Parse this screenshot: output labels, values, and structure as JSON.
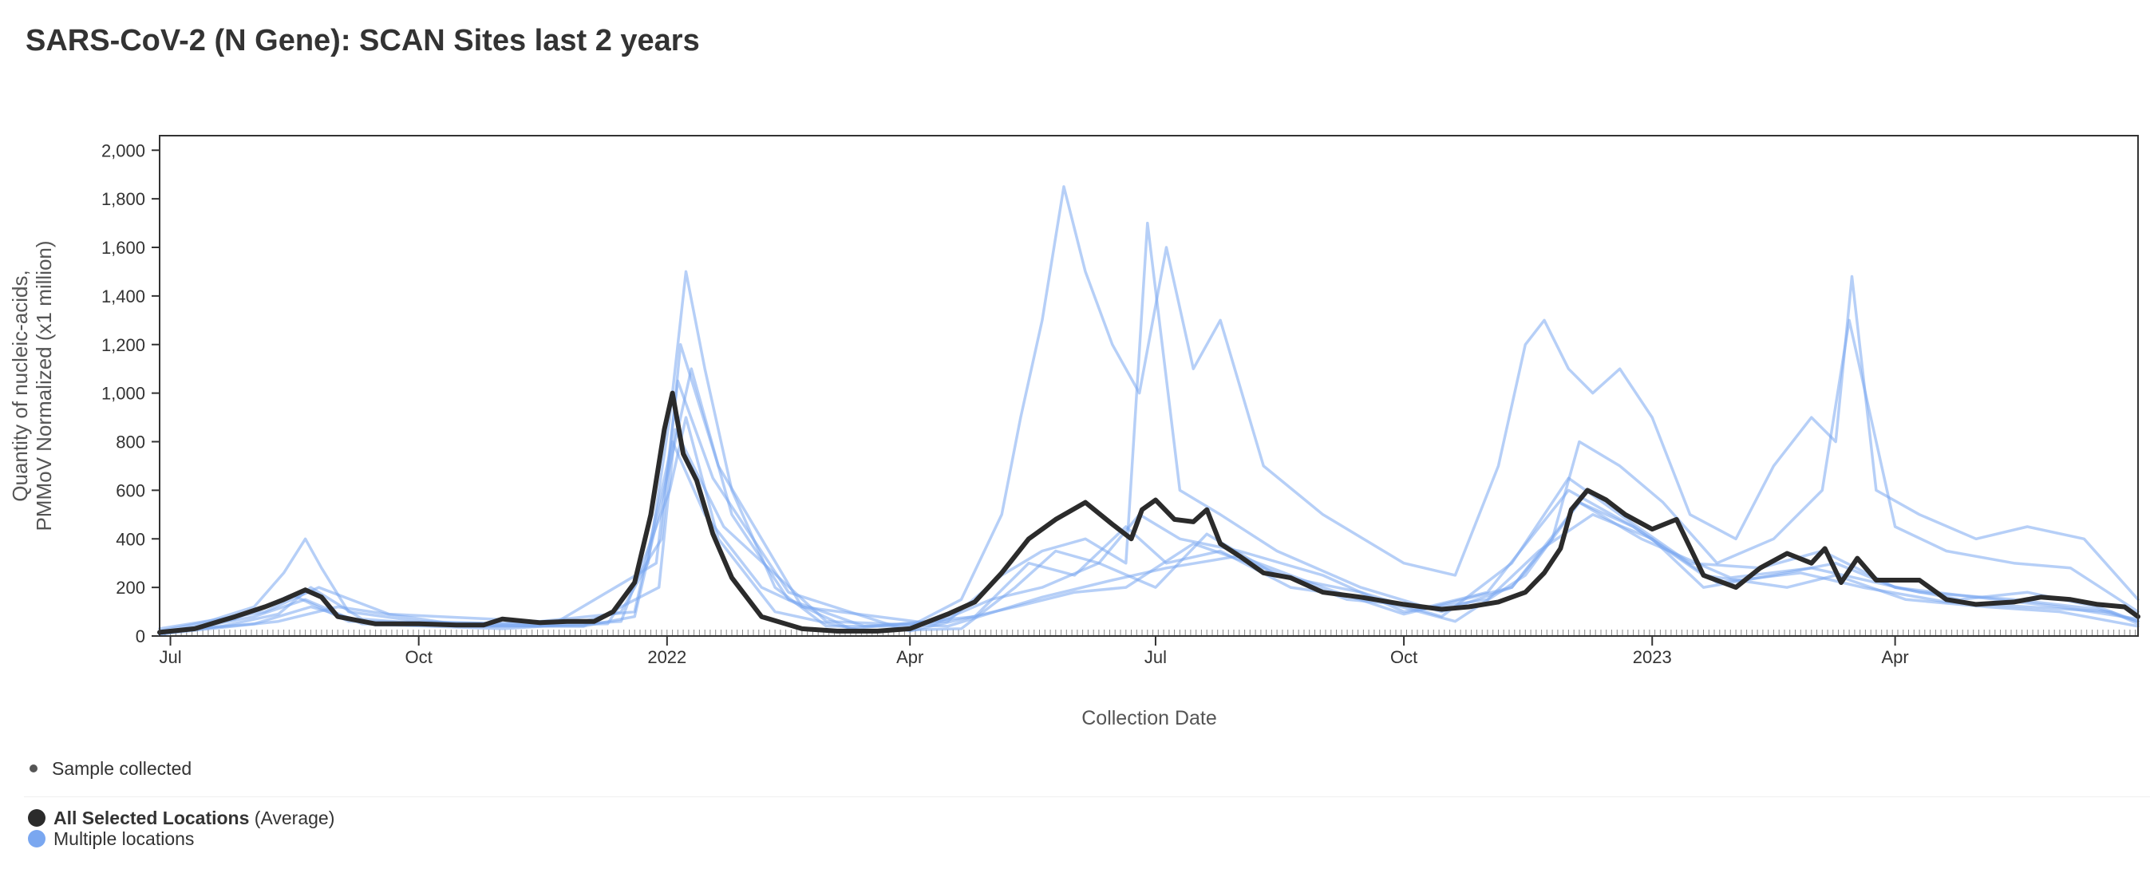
{
  "title": "SARS-CoV-2 (N Gene): SCAN Sites last 2 years",
  "legend": {
    "sample_label": "Sample collected",
    "average_label": "All Selected Locations",
    "average_suffix": "(Average)",
    "multi_label": "Multiple locations"
  },
  "colors": {
    "average": "#2b2b2b",
    "locations": "#7aa7f0",
    "sample_dot": "#555555"
  },
  "chart_data": {
    "type": "line",
    "title": "SARS-CoV-2 (N Gene): SCAN Sites last 2 years",
    "xlabel": "Collection Date",
    "ylabel": "Quantity of nucleic-acids, PMMoV Normalized (x1 million)",
    "ylabel_lines": [
      "Quantity of nucleic-acids,",
      "PMMoV Normalized (x1 million)"
    ],
    "x_range": [
      "2021-06-27",
      "2023-06-30"
    ],
    "ylim": [
      0,
      2060
    ],
    "y_ticks": [
      0,
      200,
      400,
      600,
      800,
      1000,
      1200,
      1400,
      1600,
      1800,
      2000
    ],
    "y_tick_labels": [
      "0",
      "200",
      "400",
      "600",
      "800",
      "1,000",
      "1,200",
      "1,400",
      "1,600",
      "1,800",
      "2,000"
    ],
    "x_ticks": [
      {
        "date": "2021-07-01",
        "label": "Jul"
      },
      {
        "date": "2021-10-01",
        "label": "Oct"
      },
      {
        "date": "2022-01-01",
        "label": "2022"
      },
      {
        "date": "2022-04-01",
        "label": "Apr"
      },
      {
        "date": "2022-07-01",
        "label": "Jul"
      },
      {
        "date": "2022-10-01",
        "label": "Oct"
      },
      {
        "date": "2023-01-01",
        "label": "2023"
      },
      {
        "date": "2023-04-01",
        "label": "Apr"
      }
    ],
    "grid": false,
    "legend_position": "bottom-left",
    "series": [
      {
        "name": "All Selected Locations (Average)",
        "x": [
          "2021-06-27",
          "2021-07-10",
          "2021-07-25",
          "2021-08-05",
          "2021-08-12",
          "2021-08-20",
          "2021-08-26",
          "2021-09-01",
          "2021-09-15",
          "2021-10-01",
          "2021-10-15",
          "2021-10-25",
          "2021-11-01",
          "2021-11-15",
          "2021-11-25",
          "2021-12-05",
          "2021-12-12",
          "2021-12-20",
          "2021-12-26",
          "2021-12-31",
          "2022-01-03",
          "2022-01-07",
          "2022-01-12",
          "2022-01-18",
          "2022-01-25",
          "2022-02-05",
          "2022-02-20",
          "2022-03-05",
          "2022-03-20",
          "2022-04-01",
          "2022-04-15",
          "2022-04-25",
          "2022-05-05",
          "2022-05-15",
          "2022-05-25",
          "2022-06-05",
          "2022-06-15",
          "2022-06-22",
          "2022-06-26",
          "2022-07-01",
          "2022-07-08",
          "2022-07-15",
          "2022-07-20",
          "2022-07-25",
          "2022-08-01",
          "2022-08-10",
          "2022-08-20",
          "2022-09-01",
          "2022-09-15",
          "2022-10-01",
          "2022-10-15",
          "2022-10-25",
          "2022-11-05",
          "2022-11-15",
          "2022-11-22",
          "2022-11-28",
          "2022-12-02",
          "2022-12-08",
          "2022-12-15",
          "2022-12-22",
          "2023-01-01",
          "2023-01-10",
          "2023-01-20",
          "2023-02-01",
          "2023-02-10",
          "2023-02-20",
          "2023-03-01",
          "2023-03-06",
          "2023-03-12",
          "2023-03-18",
          "2023-03-25",
          "2023-04-01",
          "2023-04-10",
          "2023-04-20",
          "2023-05-01",
          "2023-05-15",
          "2023-05-25",
          "2023-06-05",
          "2023-06-15",
          "2023-06-25",
          "2023-06-30"
        ],
        "y": [
          15,
          30,
          80,
          120,
          150,
          190,
          160,
          80,
          50,
          50,
          45,
          45,
          70,
          55,
          60,
          60,
          100,
          220,
          500,
          850,
          1000,
          750,
          640,
          420,
          240,
          80,
          30,
          20,
          20,
          30,
          90,
          140,
          260,
          400,
          480,
          550,
          460,
          400,
          520,
          560,
          480,
          470,
          520,
          380,
          330,
          260,
          240,
          180,
          160,
          130,
          110,
          120,
          140,
          180,
          260,
          360,
          520,
          600,
          560,
          500,
          440,
          480,
          250,
          200,
          280,
          340,
          300,
          360,
          220,
          320,
          230,
          230,
          230,
          150,
          130,
          140,
          160,
          150,
          130,
          120,
          80
        ]
      },
      {
        "name": "Multiple locations",
        "x": [
          "2021-06-27",
          "2021-07-15",
          "2021-08-01",
          "2021-08-12",
          "2021-08-20",
          "2021-08-26",
          "2021-09-05",
          "2021-10-01",
          "2021-11-01",
          "2021-12-01",
          "2021-12-15",
          "2021-12-25",
          "2022-01-02",
          "2022-01-08",
          "2022-01-15",
          "2022-01-25",
          "2022-02-10",
          "2022-03-01",
          "2022-04-01",
          "2022-04-20",
          "2022-05-05",
          "2022-05-12",
          "2022-05-20",
          "2022-05-28",
          "2022-06-05",
          "2022-06-15",
          "2022-06-25",
          "2022-07-05",
          "2022-07-15",
          "2022-07-25",
          "2022-08-10",
          "2022-09-01",
          "2022-10-01",
          "2022-10-20",
          "2022-11-05",
          "2022-11-15",
          "2022-11-22",
          "2022-12-01",
          "2022-12-10",
          "2022-12-20",
          "2023-01-01",
          "2023-01-15",
          "2023-02-01",
          "2023-02-15",
          "2023-03-01",
          "2023-03-10",
          "2023-03-16",
          "2023-03-25",
          "2023-04-10",
          "2023-05-01",
          "2023-05-20",
          "2023-06-10",
          "2023-06-30"
        ],
        "y": [
          20,
          60,
          120,
          260,
          400,
          280,
          100,
          60,
          50,
          60,
          100,
          300,
          900,
          1500,
          1100,
          600,
          200,
          40,
          40,
          150,
          500,
          900,
          1300,
          1850,
          1500,
          1200,
          1000,
          1600,
          1100,
          1300,
          700,
          500,
          300,
          250,
          700,
          1200,
          1300,
          1100,
          1000,
          1100,
          900,
          500,
          400,
          700,
          900,
          800,
          1480,
          600,
          500,
          400,
          450,
          400,
          150
        ]
      },
      {
        "name": "Multiple locations",
        "x": [
          "2021-06-27",
          "2021-07-20",
          "2021-08-10",
          "2021-08-22",
          "2021-09-10",
          "2021-10-15",
          "2021-12-01",
          "2021-12-20",
          "2022-01-02",
          "2022-01-10",
          "2022-01-25",
          "2022-02-15",
          "2022-03-15",
          "2022-04-15",
          "2022-05-05",
          "2022-05-20",
          "2022-06-05",
          "2022-06-20",
          "2022-06-28",
          "2022-07-10",
          "2022-07-25",
          "2022-08-15",
          "2022-09-15",
          "2022-10-15",
          "2022-11-10",
          "2022-11-25",
          "2022-12-05",
          "2022-12-20",
          "2023-01-05",
          "2023-01-25",
          "2023-02-15",
          "2023-03-05",
          "2023-03-15",
          "2023-04-01",
          "2023-04-20",
          "2023-05-15",
          "2023-06-05",
          "2023-06-30"
        ],
        "y": [
          10,
          40,
          90,
          200,
          70,
          40,
          40,
          80,
          700,
          1100,
          500,
          150,
          40,
          60,
          250,
          350,
          400,
          300,
          1700,
          600,
          500,
          350,
          200,
          100,
          200,
          400,
          800,
          700,
          550,
          300,
          400,
          600,
          1300,
          450,
          350,
          300,
          280,
          100
        ]
      },
      {
        "name": "Multiple locations",
        "x": [
          "2021-06-27",
          "2021-08-01",
          "2021-08-20",
          "2021-09-10",
          "2021-11-01",
          "2021-12-15",
          "2022-01-02",
          "2022-01-08",
          "2022-01-20",
          "2022-02-10",
          "2022-03-15",
          "2022-04-20",
          "2022-05-10",
          "2022-05-25",
          "2022-06-10",
          "2022-06-25",
          "2022-07-10",
          "2022-08-01",
          "2022-09-01",
          "2022-10-01",
          "2022-11-01",
          "2022-11-20",
          "2022-12-10",
          "2023-01-01",
          "2023-01-20",
          "2023-02-15",
          "2023-03-10",
          "2023-04-01",
          "2023-04-25",
          "2023-05-20",
          "2023-06-15",
          "2023-06-30"
        ],
        "y": [
          5,
          80,
          150,
          50,
          30,
          60,
          600,
          900,
          400,
          100,
          20,
          30,
          200,
          350,
          300,
          500,
          400,
          350,
          250,
          100,
          150,
          350,
          500,
          400,
          200,
          250,
          300,
          200,
          150,
          180,
          120,
          60
        ]
      },
      {
        "name": "Multiple locations",
        "x": [
          "2021-06-27",
          "2021-08-05",
          "2021-08-25",
          "2021-09-20",
          "2021-11-15",
          "2021-12-20",
          "2022-01-03",
          "2022-01-15",
          "2022-02-05",
          "2022-03-10",
          "2022-04-25",
          "2022-05-15",
          "2022-06-01",
          "2022-06-20",
          "2022-07-05",
          "2022-07-25",
          "2022-08-20",
          "2022-09-20",
          "2022-10-20",
          "2022-11-15",
          "2022-12-05",
          "2022-12-25",
          "2023-01-20",
          "2023-02-20",
          "2023-03-10",
          "2023-04-05",
          "2023-05-05",
          "2023-06-01",
          "2023-06-30"
        ],
        "y": [
          30,
          100,
          200,
          90,
          60,
          100,
          800,
          500,
          200,
          30,
          80,
          300,
          250,
          450,
          300,
          350,
          200,
          150,
          60,
          250,
          550,
          450,
          250,
          200,
          250,
          150,
          120,
          100,
          40
        ]
      },
      {
        "name": "Multiple locations",
        "x": [
          "2021-06-27",
          "2021-08-10",
          "2021-09-01",
          "2021-10-20",
          "2021-12-10",
          "2021-12-30",
          "2022-01-06",
          "2022-01-20",
          "2022-02-20",
          "2022-04-10",
          "2022-05-01",
          "2022-05-20",
          "2022-06-10",
          "2022-07-01",
          "2022-07-20",
          "2022-08-15",
          "2022-09-15",
          "2022-10-15",
          "2022-11-10",
          "2022-12-01",
          "2022-12-20",
          "2023-01-15",
          "2023-02-10",
          "2023-03-05",
          "2023-04-01",
          "2023-05-01",
          "2023-06-01",
          "2023-06-30"
        ],
        "y": [
          8,
          60,
          120,
          40,
          50,
          400,
          1200,
          700,
          120,
          50,
          150,
          200,
          300,
          200,
          420,
          250,
          180,
          80,
          300,
          650,
          500,
          300,
          280,
          350,
          200,
          160,
          120,
          70
        ]
      },
      {
        "name": "Multiple locations",
        "x": [
          "2021-06-27",
          "2021-07-25",
          "2021-08-15",
          "2021-09-05",
          "2021-11-20",
          "2021-12-28",
          "2022-01-05",
          "2022-01-18",
          "2022-02-15",
          "2022-04-01",
          "2022-05-10",
          "2022-06-01",
          "2022-06-20",
          "2022-07-15",
          "2022-08-10",
          "2022-09-10",
          "2022-10-10",
          "2022-11-01",
          "2022-12-01",
          "2022-12-25",
          "2023-01-25",
          "2023-02-25",
          "2023-03-20",
          "2023-04-20",
          "2023-05-20",
          "2023-06-20",
          "2023-06-30"
        ],
        "y": [
          12,
          70,
          170,
          60,
          50,
          300,
          1050,
          650,
          180,
          20,
          120,
          180,
          200,
          380,
          280,
          150,
          120,
          180,
          600,
          450,
          220,
          260,
          200,
          140,
          120,
          100,
          50
        ]
      },
      {
        "name": "Multiple locations",
        "x": [
          "2021-06-27",
          "2021-08-01",
          "2021-08-22",
          "2021-09-15",
          "2021-12-01",
          "2021-12-29",
          "2022-01-04",
          "2022-01-22",
          "2022-03-01",
          "2022-04-15",
          "2022-05-20",
          "2022-06-15",
          "2022-07-05",
          "2022-08-01",
          "2022-09-01",
          "2022-10-01",
          "2022-11-10",
          "2022-12-05",
          "2022-12-28",
          "2023-01-30",
          "2023-03-01",
          "2023-04-10",
          "2023-05-15",
          "2023-06-15",
          "2023-06-30"
        ],
        "y": [
          18,
          50,
          120,
          45,
          40,
          200,
          850,
          450,
          60,
          40,
          160,
          230,
          280,
          330,
          200,
          90,
          200,
          550,
          400,
          240,
          280,
          180,
          150,
          110,
          60
        ]
      }
    ]
  }
}
